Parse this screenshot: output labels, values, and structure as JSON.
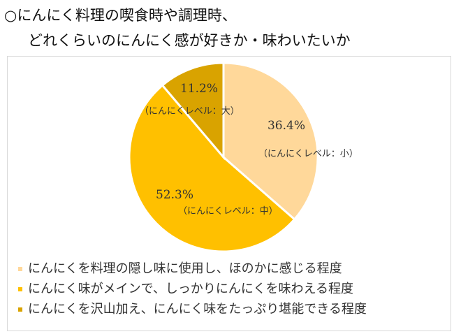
{
  "title_line1": "○にんにく料理の喫食時や調理時、",
  "title_line2": "どれくらいのにんにく感が好きか・味わいたいか",
  "chart_data": {
    "type": "pie",
    "start": "top, clockwise",
    "slices": [
      {
        "label": "（にんにくレベル：小）",
        "value": 36.4,
        "value_label": "36.4%",
        "legend": "にんにくを料理の隠し味に使用し、ほのかに感じる程度",
        "color": "#FFD89A"
      },
      {
        "label": "（にんにくレベル：中）",
        "value": 52.3,
        "value_label": "52.3%",
        "legend": "にんにく味がメインで、しっかりにんにくを味わえる程度",
        "color": "#FFC000"
      },
      {
        "label": "（にんにくレベル：大）",
        "value": 11.2,
        "value_label": "11.2%",
        "legend": "にんにくを沢山加え、にんにく味をたっぷり堪能できる程度",
        "color": "#D9A300"
      }
    ],
    "legend_position": "bottom"
  }
}
